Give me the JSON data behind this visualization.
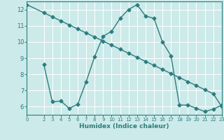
{
  "line1_x": [
    0,
    2,
    3,
    4,
    5,
    6,
    7,
    8,
    9,
    10,
    11,
    12,
    13,
    14,
    15,
    16,
    17,
    18,
    19,
    20,
    21,
    22,
    23
  ],
  "line1_y": [
    12.3,
    11.8,
    11.55,
    11.3,
    11.05,
    10.8,
    10.55,
    10.3,
    10.05,
    9.8,
    9.55,
    9.3,
    9.05,
    8.8,
    8.55,
    8.3,
    8.05,
    7.8,
    7.55,
    7.3,
    7.05,
    6.8,
    6.0
  ],
  "line2_x": [
    2,
    3,
    4,
    5,
    6,
    7,
    8,
    9,
    10,
    11,
    12,
    13,
    14,
    15,
    16,
    17,
    18,
    19,
    20,
    21,
    22,
    23
  ],
  "line2_y": [
    8.6,
    6.3,
    6.35,
    5.9,
    6.15,
    7.55,
    9.1,
    10.35,
    10.65,
    11.45,
    12.0,
    12.3,
    11.6,
    11.45,
    10.0,
    9.15,
    6.1,
    6.1,
    5.9,
    5.7,
    5.85,
    6.1
  ],
  "line_color": "#2d7c7c",
  "bg_color": "#cceaea",
  "grid_color": "#b0d8d8",
  "xlabel": "Humidex (Indice chaleur)",
  "xlim": [
    0,
    23
  ],
  "ylim": [
    5.5,
    12.5
  ],
  "yticks": [
    6,
    7,
    8,
    9,
    10,
    11,
    12
  ],
  "xticks": [
    0,
    2,
    3,
    4,
    5,
    6,
    7,
    8,
    9,
    10,
    11,
    12,
    13,
    14,
    15,
    16,
    17,
    18,
    19,
    20,
    21,
    22,
    23
  ],
  "marker": "D",
  "markersize": 2.5,
  "linewidth": 1.0
}
